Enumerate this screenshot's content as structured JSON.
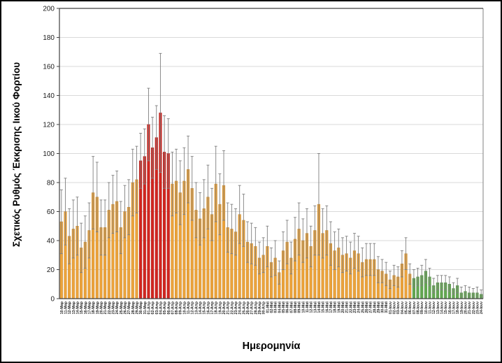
{
  "page": {
    "background": "#ffffff",
    "border_color": "#000000"
  },
  "chart_data": {
    "type": "bar",
    "title": "",
    "xlabel": "Ημερομηνία",
    "ylabel": "Σχετικός Ρυθμός Έκκρισης Ιικού Φορτίου",
    "ylim": [
      0,
      200
    ],
    "ytick_step": 20,
    "grid": true,
    "legend": false,
    "colors": {
      "default": "#ECA33B",
      "default_stroke": "#C9882B",
      "red": "#D2251F",
      "red_stroke": "#A81A16",
      "green": "#63A751",
      "green_stroke": "#4C8A3E",
      "error_bar": "#7F7F7F",
      "gridline": "#D9D9D9",
      "frame": "#808080",
      "axis_line": "#404040",
      "axis_text": "#1A1A1A"
    },
    "segments": [
      {
        "color_key": "default",
        "from": 0,
        "to": 19
      },
      {
        "color_key": "red",
        "from": 20,
        "to": 27
      },
      {
        "color_key": "default",
        "from": 28,
        "to": 88
      },
      {
        "color_key": "green",
        "from": 89,
        "to": 106
      }
    ],
    "categories": [
      "10-Μαρ",
      "11-Μαρ",
      "12-Μαρ",
      "13-Μαρ",
      "14-Μαρ",
      "15-Μαρ",
      "16-Μαρ",
      "17-Μαρ",
      "18-Μαρ",
      "19-Μαρ",
      "20-Μαρ",
      "21-Μαρ",
      "22-Μαρ",
      "23-Μαρ",
      "24-Μαρ",
      "25-Μαρ",
      "26-Μαρ",
      "27-Μαρ",
      "28-Μαρ",
      "29-Μαρ",
      "30-Μαρ",
      "31-Μαρ",
      "01-Απρ",
      "02-Απρ",
      "03-Απρ",
      "04-Απρ",
      "05-Απρ",
      "06-Απρ",
      "07-Απρ",
      "08-Απρ",
      "09-Απρ",
      "10-Απρ",
      "11-Απρ",
      "12-Απρ",
      "13-Απρ",
      "14-Απρ",
      "15-Απρ",
      "16-Απρ",
      "17-Απρ",
      "18-Απρ",
      "19-Απρ",
      "20-Απρ",
      "21-Απρ",
      "22-Απρ",
      "23-Απρ",
      "24-Απρ",
      "25-Απρ",
      "26-Απρ",
      "27-Απρ",
      "28-Απρ",
      "29-Απρ",
      "30-Απρ",
      "01-Μαϊ",
      "02-Μαϊ",
      "03-Μαϊ",
      "04-Μαϊ",
      "05-Μαϊ",
      "06-Μαϊ",
      "07-Μαϊ",
      "08-Μαϊ",
      "09-Μαϊ",
      "10-Μαϊ",
      "11-Μαϊ",
      "12-Μαϊ",
      "13-Μαϊ",
      "14-Μαϊ",
      "15-Μαϊ",
      "16-Μαϊ",
      "17-Μαϊ",
      "18-Μαϊ",
      "19-Μαϊ",
      "20-Μαϊ",
      "21-Μαϊ",
      "22-Μαϊ",
      "23-Μαϊ",
      "24-Μαϊ",
      "25-Μαϊ",
      "26-Μαϊ",
      "27-Μαϊ",
      "28-Μαϊ",
      "29-Μαϊ",
      "30-Μαϊ",
      "31-Μαϊ",
      "01-Ιουν",
      "02-Ιουν",
      "03-Ιουν",
      "04-Ιουν",
      "05-Ιουν",
      "06-Ιουν",
      "07-Ιουν",
      "08-Ιουν",
      "09-Ιουν",
      "10-Ιουν",
      "11-Ιουν",
      "12-Ιουν",
      "13-Ιουν",
      "14-Ιουν",
      "15-Ιουν",
      "16-Ιουν",
      "17-Ιουν",
      "18-Ιουν",
      "19-Ιουν",
      "20-Ιουν",
      "21-Ιουν",
      "22-Ιουν",
      "23-Ιουν",
      "24-Ιουν"
    ],
    "values": [
      53,
      60,
      43,
      48,
      50,
      35,
      39,
      47,
      73,
      70,
      49,
      49,
      61,
      65,
      67,
      49,
      60,
      63,
      80,
      82,
      95,
      98,
      120,
      104,
      111,
      128,
      101,
      100,
      79,
      81,
      73,
      81,
      89,
      76,
      61,
      55,
      62,
      70,
      58,
      79,
      65,
      78,
      49,
      48,
      46,
      58,
      54,
      39,
      38,
      36,
      28,
      30,
      36,
      25,
      28,
      18,
      33,
      39,
      28,
      41,
      48,
      40,
      45,
      36,
      47,
      65,
      45,
      47,
      38,
      33,
      35,
      30,
      31,
      28,
      33,
      31,
      25,
      27,
      27,
      27,
      20,
      19,
      17,
      13,
      16,
      15,
      24,
      31,
      17,
      14,
      15,
      16,
      19,
      15,
      9,
      11,
      11,
      11,
      10,
      7,
      9,
      4,
      5,
      4,
      4,
      4,
      3
    ],
    "errors": [
      22,
      23,
      19,
      20,
      20,
      17,
      18,
      19,
      25,
      24,
      19,
      19,
      19,
      20,
      21,
      18,
      18,
      19,
      23,
      23,
      19,
      19,
      25,
      21,
      22,
      41,
      25,
      24,
      22,
      22,
      22,
      23,
      23,
      22,
      19,
      18,
      20,
      22,
      18,
      26,
      21,
      24,
      17,
      17,
      16,
      20,
      18,
      14,
      14,
      13,
      11,
      12,
      14,
      10,
      12,
      8,
      13,
      15,
      11,
      15,
      18,
      15,
      17,
      14,
      17,
      35,
      17,
      17,
      15,
      13,
      13,
      12,
      12,
      11,
      12,
      12,
      10,
      11,
      11,
      11,
      9,
      8,
      8,
      6,
      7,
      7,
      9,
      11,
      7,
      6,
      6,
      7,
      8,
      6,
      5,
      5,
      5,
      5,
      5,
      4,
      5,
      4,
      4,
      4,
      3,
      4,
      3
    ]
  }
}
